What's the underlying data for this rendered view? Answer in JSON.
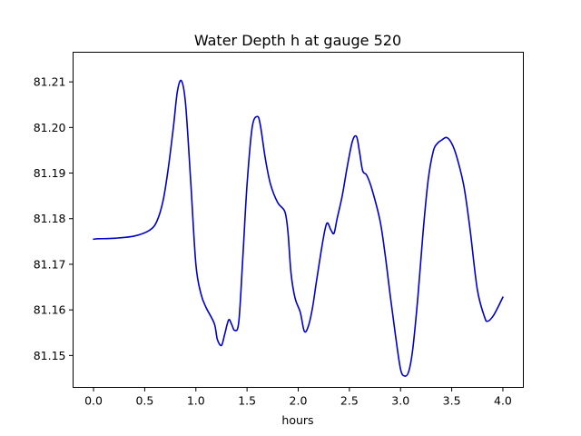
{
  "chart_data": {
    "type": "line",
    "title": "Water Depth h at gauge 520",
    "xlabel": "hours",
    "ylabel": "",
    "xlim": [
      -0.2,
      4.2
    ],
    "ylim": [
      81.143,
      81.2165
    ],
    "xticks": [
      0.0,
      0.5,
      1.0,
      1.5,
      2.0,
      2.5,
      3.0,
      3.5,
      4.0
    ],
    "xtick_labels": [
      "0.0",
      "0.5",
      "1.0",
      "1.5",
      "2.0",
      "2.5",
      "3.0",
      "3.5",
      "4.0"
    ],
    "yticks": [
      81.15,
      81.16,
      81.17,
      81.18,
      81.19,
      81.2,
      81.21
    ],
    "ytick_labels": [
      "81.15",
      "81.16",
      "81.17",
      "81.18",
      "81.19",
      "81.20",
      "81.21"
    ],
    "grid": false,
    "series": [
      {
        "color": "#0000cc",
        "x": [
          0.0,
          0.05,
          0.2,
          0.4,
          0.55,
          0.62,
          0.68,
          0.73,
          0.78,
          0.82,
          0.86,
          0.9,
          0.95,
          1.0,
          1.05,
          1.1,
          1.18,
          1.21,
          1.25,
          1.28,
          1.32,
          1.35,
          1.38,
          1.42,
          1.46,
          1.5,
          1.55,
          1.6,
          1.63,
          1.68,
          1.73,
          1.8,
          1.87,
          1.9,
          1.93,
          1.97,
          2.02,
          2.06,
          2.1,
          2.14,
          2.18,
          2.24,
          2.28,
          2.32,
          2.35,
          2.38,
          2.43,
          2.48,
          2.53,
          2.57,
          2.6,
          2.63,
          2.67,
          2.72,
          2.8,
          2.85,
          2.9,
          2.95,
          3.0,
          3.04,
          3.08,
          3.12,
          3.17,
          3.22,
          3.27,
          3.32,
          3.36,
          3.4,
          3.45,
          3.5,
          3.55,
          3.62,
          3.68,
          3.75,
          3.82,
          3.85,
          3.9,
          3.95,
          4.0
        ],
        "y": [
          81.1755,
          81.1756,
          81.1757,
          81.1762,
          81.1775,
          81.1795,
          81.184,
          81.191,
          81.2,
          81.208,
          81.2102,
          81.205,
          81.188,
          81.17,
          81.1635,
          81.1605,
          81.157,
          81.1535,
          81.1522,
          81.1545,
          81.1578,
          81.1568,
          81.1555,
          81.1575,
          81.172,
          81.1875,
          81.2,
          81.2024,
          81.2005,
          81.193,
          81.1875,
          81.1835,
          81.1815,
          81.177,
          81.168,
          81.1625,
          81.1595,
          81.1553,
          81.1565,
          81.1605,
          81.1665,
          81.175,
          81.179,
          81.1775,
          81.1768,
          81.18,
          81.185,
          81.1915,
          81.197,
          81.198,
          81.1945,
          81.1905,
          81.1895,
          81.1865,
          81.1795,
          81.172,
          81.163,
          81.1545,
          81.147,
          81.1455,
          81.1465,
          81.1515,
          81.163,
          81.177,
          81.1885,
          81.1948,
          81.1965,
          81.1972,
          81.1978,
          81.1965,
          81.1935,
          81.187,
          81.1775,
          81.1645,
          81.1585,
          81.1575,
          81.1585,
          81.1605,
          81.1628
        ]
      }
    ]
  }
}
